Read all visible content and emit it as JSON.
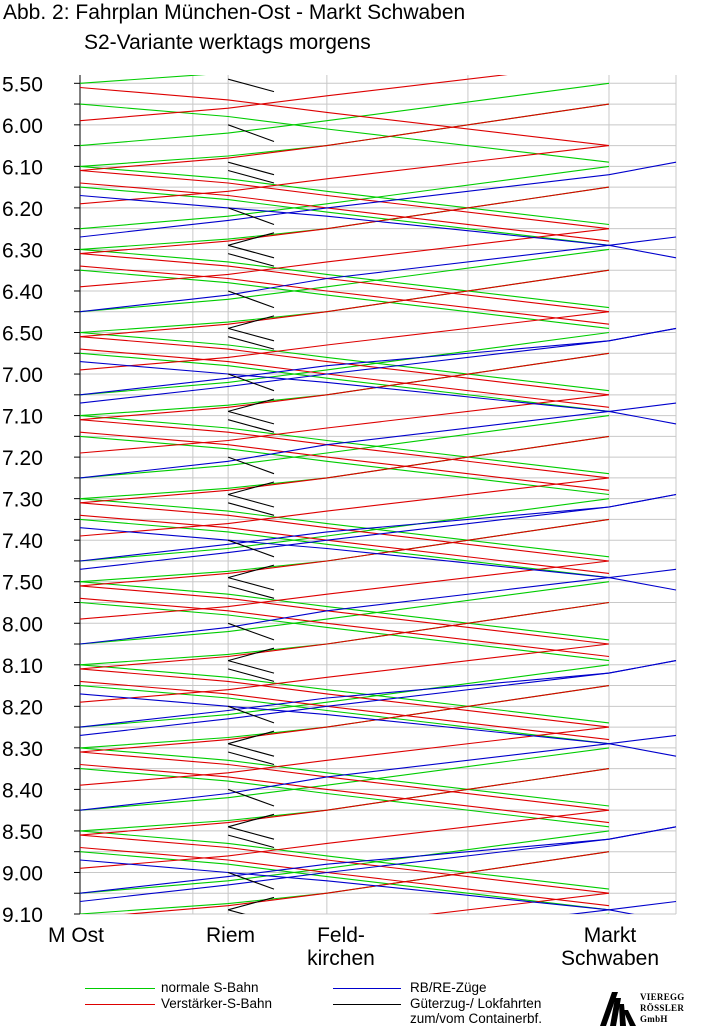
{
  "title": "Abb. 2: Fahrplan München-Ost - Markt Schwaben",
  "subtitle": "S2-Variante werktags morgens",
  "stations": [
    {
      "id": "mo",
      "label": "M Ost",
      "km": 0
    },
    {
      "id": "riem",
      "label": "Riem",
      "km": 4.2
    },
    {
      "id": "feld",
      "label": "Feld-\nkirchen",
      "km": 7.0
    },
    {
      "id": "ms",
      "label": "Markt\nSchwaben",
      "km": 15.0
    }
  ],
  "legend": [
    {
      "id": "green",
      "label": "normale S-Bahn",
      "color": "#00cc00"
    },
    {
      "id": "red",
      "label": "Verstärker-S-Bahn",
      "color": "#dd0000"
    },
    {
      "id": "blue",
      "label": "RB/RE-Züge",
      "color": "#0000cc"
    },
    {
      "id": "black",
      "label": "Güterzug-/ Lokfahrten\nzum/vom Containerbf.",
      "color": "#000000"
    }
  ],
  "logo": {
    "line1": "VIEREGG",
    "line2": "RÖSSLER",
    "line3": "GmbH"
  },
  "chart_data": {
    "type": "line",
    "title": "Abb. 2: Fahrplan München-Ost - Markt Schwaben",
    "subtitle": "S2-Variante werktags morgens",
    "x_axis": {
      "categories": [
        "M Ost",
        "Riem",
        "Feld-kirchen",
        "Markt Schwaben"
      ],
      "unit": "km"
    },
    "y_axis": {
      "unit": "time (h.mm)",
      "range": [
        "5:48",
        "9:10"
      ],
      "inverted": true,
      "tick_labels": [
        "5.50",
        "6.00",
        "6.10",
        "6.20",
        "6.30",
        "6.40",
        "6.50",
        "7.00",
        "7.10",
        "7.20",
        "7.30",
        "7.40",
        "7.50",
        "8.00",
        "8.10",
        "8.20",
        "8.30",
        "8.40",
        "8.50",
        "9.00",
        "9.10"
      ]
    },
    "grid": true,
    "series": [
      {
        "name": "normale S-Bahn",
        "color": "#00cc00",
        "lines": [
          [
            [
              0,
              "5:50"
            ],
            [
              4.2,
              "5:47.5"
            ],
            [
              7.0,
              "5:45"
            ],
            [
              15.0,
              "5:35"
            ]
          ],
          [
            [
              0,
              "5:55"
            ],
            [
              4.2,
              "5:58"
            ],
            [
              7.0,
              "6:01"
            ],
            [
              15.0,
              "6:09"
            ]
          ],
          [
            [
              0,
              "6:05"
            ],
            [
              4.2,
              "6:02"
            ],
            [
              7.0,
              "5:59"
            ],
            [
              15.0,
              "5:50"
            ]
          ],
          [
            [
              0,
              "6:10"
            ],
            [
              4.2,
              "6:13"
            ],
            [
              7.0,
              "6:16"
            ],
            [
              15.0,
              "6:24"
            ]
          ]
        ]
      },
      {
        "name": "Verstärker-S-Bahn",
        "color": "#dd0000",
        "lines": [
          [
            [
              0,
              "5:51"
            ],
            [
              4.2,
              "5:54"
            ],
            [
              7.0,
              "5:57"
            ],
            [
              15.0,
              "6:05"
            ]
          ],
          [
            [
              0,
              "5:59"
            ],
            [
              4.2,
              "5:56"
            ],
            [
              7.0,
              "5:53"
            ],
            [
              15.0,
              "5:45"
            ]
          ],
          [
            [
              0,
              "6:11"
            ],
            [
              4.2,
              "6:08"
            ],
            [
              7.0,
              "6:05"
            ],
            [
              15.0,
              "5:55"
            ]
          ],
          [
            [
              0,
              "6:14"
            ],
            [
              4.2,
              "6:17"
            ],
            [
              7.0,
              "6:20"
            ],
            [
              15.0,
              "6:28"
            ]
          ]
        ]
      },
      {
        "name": "RB/RE-Züge",
        "color": "#0000cc",
        "lines": [
          [
            [
              0,
              "6:17"
            ],
            [
              4.2,
              "6:20"
            ],
            [
              7.0,
              "6:22"
            ],
            [
              15.0,
              "6:29"
            ],
            [
              16.9,
              "6:32"
            ]
          ],
          [
            [
              0,
              "6:27"
            ],
            [
              4.2,
              "6:23"
            ],
            [
              7.0,
              "6:20"
            ],
            [
              15.0,
              "6:12"
            ],
            [
              16.9,
              "6:09"
            ]
          ],
          [
            [
              0,
              "6:45"
            ],
            [
              4.2,
              "6:41"
            ],
            [
              7.0,
              "6:37"
            ],
            [
              15.0,
              "6:29"
            ],
            [
              16.9,
              "6:27"
            ]
          ],
          [
            [
              0,
              "7:05"
            ],
            [
              4.2,
              "7:01"
            ],
            [
              7.0,
              "6:58"
            ],
            [
              15.0,
              "6:52"
            ],
            [
              16.9,
              "6:49"
            ]
          ]
        ]
      },
      {
        "name": "Güterzug-/ Lokfahrten zum/vom Containerbf.",
        "color": "#000000",
        "lines": [
          [
            [
              4.2,
              "5:49"
            ],
            [
              5.5,
              "5:52"
            ]
          ],
          [
            [
              4.2,
              "6:00"
            ],
            [
              5.5,
              "6:04"
            ]
          ],
          [
            [
              4.2,
              "6:11"
            ],
            [
              5.5,
              "6:14"
            ]
          ],
          [
            [
              4.2,
              "6:29"
            ],
            [
              5.5,
              "6:26"
            ]
          ]
        ]
      }
    ]
  }
}
